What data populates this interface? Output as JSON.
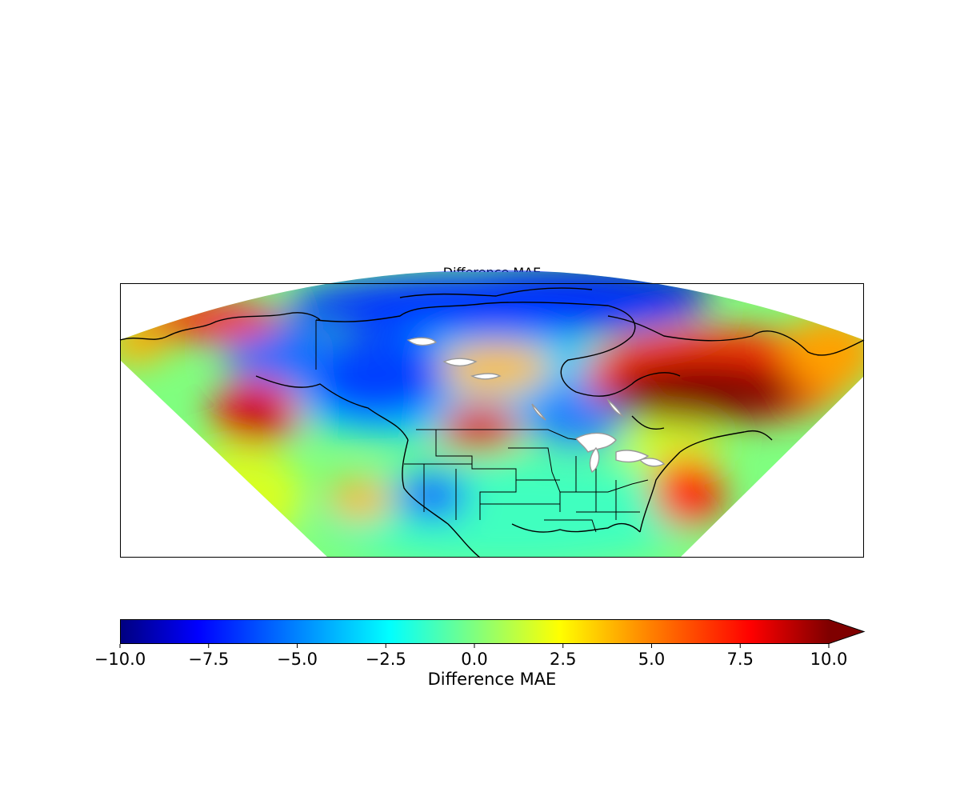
{
  "title": "Difference MAE",
  "colorbar": {
    "label": "Difference MAE",
    "vmin": -10,
    "vmax": 10,
    "extend": "max",
    "colormap": "jet",
    "colormap_stops": [
      "#00007f",
      "#0000ff",
      "#007fff",
      "#00ffff",
      "#7fff7f",
      "#ffff00",
      "#ff7f00",
      "#ff0000",
      "#7f0000"
    ],
    "ticks": [
      {
        "value": -10,
        "label": "−10.0"
      },
      {
        "value": -7.5,
        "label": "−7.5"
      },
      {
        "value": -5,
        "label": "−5.0"
      },
      {
        "value": -2.5,
        "label": "−2.5"
      },
      {
        "value": 0,
        "label": "0.0"
      },
      {
        "value": 2.5,
        "label": "2.5"
      },
      {
        "value": 5,
        "label": "5.0"
      },
      {
        "value": 7.5,
        "label": "7.5"
      },
      {
        "value": 10,
        "label": "10.0"
      }
    ]
  },
  "map": {
    "region": "North America",
    "projection": "conic",
    "features": [
      "coastlines",
      "country borders",
      "US state borders",
      "lakes"
    ],
    "lake_color": "#ffffff",
    "land_outline_color": "#000000"
  }
}
